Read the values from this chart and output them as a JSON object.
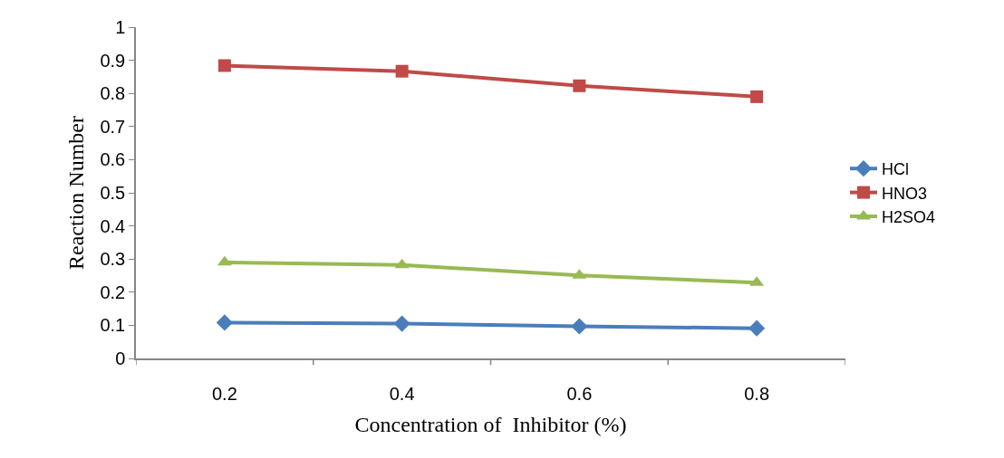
{
  "chart_data": {
    "type": "line",
    "xlabel": "Concentration of  Inhibitor (%)",
    "ylabel": "Reaction Number",
    "categories": [
      "0.2",
      "0.4",
      "0.6",
      "0.8"
    ],
    "ylim": [
      0,
      1
    ],
    "yticks": [
      0,
      0.1,
      0.2,
      0.3,
      0.4,
      0.5,
      0.6,
      0.7,
      0.8,
      0.9,
      1
    ],
    "grid": false,
    "legend": "right",
    "series": [
      {
        "name": "HCl",
        "color": "#4a7ebb",
        "marker": "diamond",
        "values": [
          0.108,
          0.105,
          0.097,
          0.091
        ]
      },
      {
        "name": "HNO3",
        "color": "#be4b48",
        "marker": "square",
        "values": [
          0.884,
          0.867,
          0.823,
          0.79
        ]
      },
      {
        "name": "H2SO4",
        "color": "#98b954",
        "marker": "triangle",
        "values": [
          0.29,
          0.282,
          0.251,
          0.229
        ]
      }
    ]
  }
}
